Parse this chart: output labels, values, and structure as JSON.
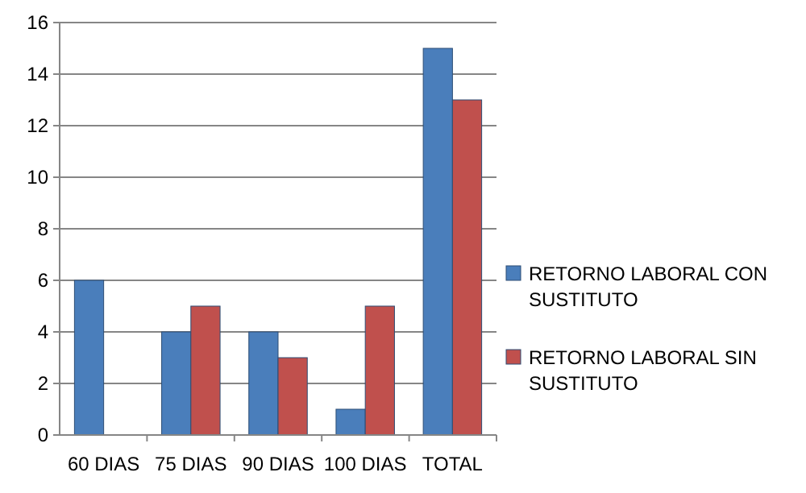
{
  "chart_data": {
    "type": "bar",
    "categories": [
      "60 DIAS",
      "75 DIAS",
      "90 DIAS",
      "100 DIAS",
      "TOTAL"
    ],
    "series": [
      {
        "name": "RETORNO LABORAL CON SUSTITUTO",
        "color": "#4a7ebb",
        "values": [
          6,
          4,
          4,
          1,
          15
        ]
      },
      {
        "name": "RETORNO LABORAL SIN SUSTITUTO",
        "color": "#c0504d",
        "values": [
          0,
          5,
          3,
          5,
          13
        ]
      }
    ],
    "ylim": [
      0,
      16
    ],
    "yticks": [
      0,
      2,
      4,
      6,
      8,
      10,
      12,
      14,
      16
    ],
    "grid": "y",
    "legend": "right"
  }
}
